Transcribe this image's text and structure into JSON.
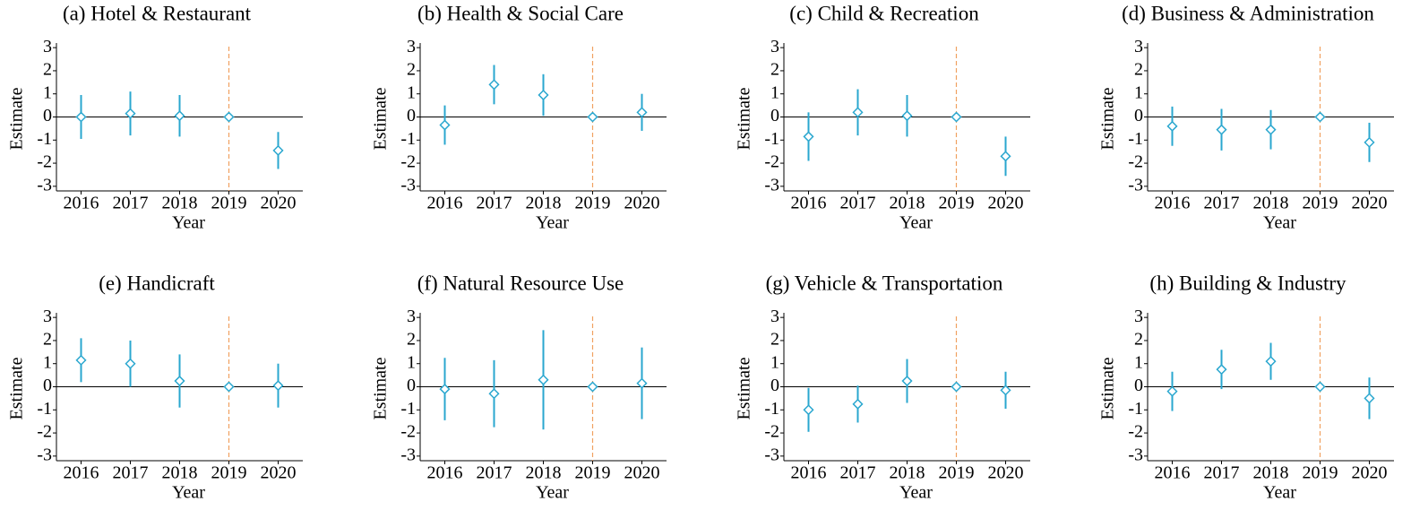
{
  "chart_data": [
    {
      "type": "errorbar",
      "title": "(a) Hotel & Restaurant",
      "xlabel": "Year",
      "ylabel": "Estimate",
      "x": [
        2016,
        2017,
        2018,
        2019,
        2020
      ],
      "values": [
        0,
        0.15,
        0.05,
        0,
        -1.45
      ],
      "errors": [
        0.95,
        0.95,
        0.9,
        0,
        0.8
      ],
      "color": "#2aa7cf",
      "xlim": [
        2015.5,
        2020.5
      ],
      "xticks": [
        2016,
        2017,
        2018,
        2019,
        2020
      ],
      "ylim": [
        -3.2,
        3.2
      ],
      "yticks": [
        -3,
        -2,
        -1,
        0,
        1,
        2,
        3
      ],
      "hline": 0,
      "vline": 2019,
      "vline_color": "#f0a060"
    },
    {
      "type": "errorbar",
      "title": "(b) Health & Social Care",
      "xlabel": "Year",
      "ylabel": "Estimate",
      "x": [
        2016,
        2017,
        2018,
        2019,
        2020
      ],
      "values": [
        -0.35,
        1.4,
        0.95,
        0,
        0.2
      ],
      "errors": [
        0.85,
        0.85,
        0.9,
        0,
        0.8
      ],
      "color": "#2aa7cf",
      "xlim": [
        2015.5,
        2020.5
      ],
      "xticks": [
        2016,
        2017,
        2018,
        2019,
        2020
      ],
      "ylim": [
        -3.2,
        3.2
      ],
      "yticks": [
        -3,
        -2,
        -1,
        0,
        1,
        2,
        3
      ],
      "hline": 0,
      "vline": 2019,
      "vline_color": "#f0a060"
    },
    {
      "type": "errorbar",
      "title": "(c) Child & Recreation",
      "xlabel": "Year",
      "ylabel": "Estimate",
      "x": [
        2016,
        2017,
        2018,
        2019,
        2020
      ],
      "values": [
        -0.85,
        0.2,
        0.05,
        0,
        -1.7
      ],
      "errors": [
        1.05,
        1.0,
        0.9,
        0,
        0.85
      ],
      "color": "#2aa7cf",
      "xlim": [
        2015.5,
        2020.5
      ],
      "xticks": [
        2016,
        2017,
        2018,
        2019,
        2020
      ],
      "ylim": [
        -3.2,
        3.2
      ],
      "yticks": [
        -3,
        -2,
        -1,
        0,
        1,
        2,
        3
      ],
      "hline": 0,
      "vline": 2019,
      "vline_color": "#f0a060"
    },
    {
      "type": "errorbar",
      "title": "(d) Business & Administration",
      "xlabel": "Year",
      "ylabel": "Estimate",
      "x": [
        2016,
        2017,
        2018,
        2019,
        2020
      ],
      "values": [
        -0.4,
        -0.55,
        -0.55,
        0,
        -1.1
      ],
      "errors": [
        0.85,
        0.9,
        0.85,
        0,
        0.85
      ],
      "color": "#2aa7cf",
      "xlim": [
        2015.5,
        2020.5
      ],
      "xticks": [
        2016,
        2017,
        2018,
        2019,
        2020
      ],
      "ylim": [
        -3.2,
        3.2
      ],
      "yticks": [
        -3,
        -2,
        -1,
        0,
        1,
        2,
        3
      ],
      "hline": 0,
      "vline": 2019,
      "vline_color": "#f0a060"
    },
    {
      "type": "errorbar",
      "title": "(e) Handicraft",
      "xlabel": "Year",
      "ylabel": "Estimate",
      "x": [
        2016,
        2017,
        2018,
        2019,
        2020
      ],
      "values": [
        1.15,
        1.0,
        0.25,
        0,
        0.05
      ],
      "errors": [
        0.95,
        1.0,
        1.15,
        0,
        0.95
      ],
      "color": "#2aa7cf",
      "xlim": [
        2015.5,
        2020.5
      ],
      "xticks": [
        2016,
        2017,
        2018,
        2019,
        2020
      ],
      "ylim": [
        -3.2,
        3.2
      ],
      "yticks": [
        -3,
        -2,
        -1,
        0,
        1,
        2,
        3
      ],
      "hline": 0,
      "vline": 2019,
      "vline_color": "#f0a060"
    },
    {
      "type": "errorbar",
      "title": "(f) Natural Resource Use",
      "xlabel": "Year",
      "ylabel": "Estimate",
      "x": [
        2016,
        2017,
        2018,
        2019,
        2020
      ],
      "values": [
        -0.1,
        -0.3,
        0.3,
        0,
        0.15
      ],
      "errors": [
        1.35,
        1.45,
        2.15,
        0,
        1.55
      ],
      "color": "#2aa7cf",
      "xlim": [
        2015.5,
        2020.5
      ],
      "xticks": [
        2016,
        2017,
        2018,
        2019,
        2020
      ],
      "ylim": [
        -3.2,
        3.2
      ],
      "yticks": [
        -3,
        -2,
        -1,
        0,
        1,
        2,
        3
      ],
      "hline": 0,
      "vline": 2019,
      "vline_color": "#f0a060"
    },
    {
      "type": "errorbar",
      "title": "(g) Vehicle & Transportation",
      "xlabel": "Year",
      "ylabel": "Estimate",
      "x": [
        2016,
        2017,
        2018,
        2019,
        2020
      ],
      "values": [
        -1.0,
        -0.75,
        0.25,
        0,
        -0.15
      ],
      "errors": [
        0.95,
        0.8,
        0.95,
        0,
        0.8
      ],
      "color": "#2aa7cf",
      "xlim": [
        2015.5,
        2020.5
      ],
      "xticks": [
        2016,
        2017,
        2018,
        2019,
        2020
      ],
      "ylim": [
        -3.2,
        3.2
      ],
      "yticks": [
        -3,
        -2,
        -1,
        0,
        1,
        2,
        3
      ],
      "hline": 0,
      "vline": 2019,
      "vline_color": "#f0a060"
    },
    {
      "type": "errorbar",
      "title": "(h) Building & Industry",
      "xlabel": "Year",
      "ylabel": "Estimate",
      "x": [
        2016,
        2017,
        2018,
        2019,
        2020
      ],
      "values": [
        -0.2,
        0.75,
        1.1,
        0,
        -0.5
      ],
      "errors": [
        0.85,
        0.85,
        0.8,
        0,
        0.9
      ],
      "color": "#2aa7cf",
      "xlim": [
        2015.5,
        2020.5
      ],
      "xticks": [
        2016,
        2017,
        2018,
        2019,
        2020
      ],
      "ylim": [
        -3.2,
        3.2
      ],
      "yticks": [
        -3,
        -2,
        -1,
        0,
        1,
        2,
        3
      ],
      "hline": 0,
      "vline": 2019,
      "vline_color": "#f0a060"
    }
  ]
}
